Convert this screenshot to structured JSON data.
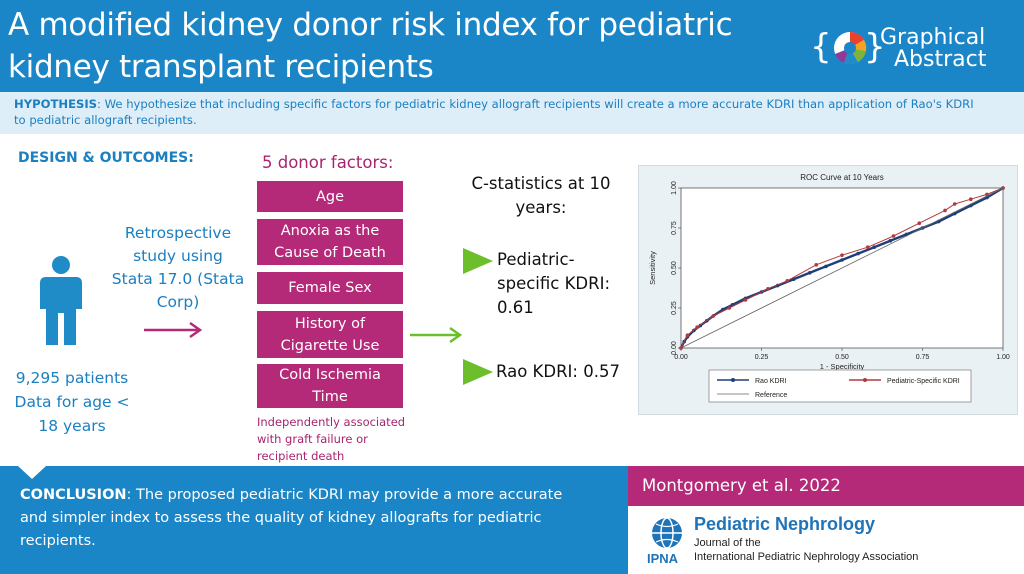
{
  "header": {
    "title_line1": "A modified kidney donor risk index for pediatric",
    "title_line2": "kidney transplant recipients",
    "badge_line1": "Graphical",
    "badge_line2": "Abstract"
  },
  "hypothesis": {
    "label": "HYPOTHESIS",
    "text_line1": ": We hypothesize that including specific factors for pediatric kidney allograft recipients will create a more accurate KDRI than application of Rao's KDRI",
    "text_line2": "to pediatric allograft recipients."
  },
  "design": {
    "label": "DESIGN & OUTCOMES:",
    "retro_lines": [
      "Retrospective",
      "study using",
      "Stata 17.0 (Stata",
      "Corp)"
    ],
    "patients_lines": [
      "9,295 patients",
      "Data for age <",
      "18 years"
    ]
  },
  "factors": {
    "title": "5 donor factors:",
    "items": [
      {
        "lines": [
          "Age"
        ]
      },
      {
        "lines": [
          "Anoxia as the",
          "Cause of Death"
        ]
      },
      {
        "lines": [
          "Female Sex"
        ]
      },
      {
        "lines": [
          "History of",
          "Cigarette Use"
        ]
      },
      {
        "lines": [
          "Cold Ischemia",
          "Time"
        ]
      }
    ],
    "note_lines": [
      "Independently associated",
      "with graft failure or",
      "recipient death"
    ]
  },
  "cstats": {
    "title_lines": [
      "C-statistics at 10",
      "years:"
    ],
    "ped_lines": [
      "Pediatric-",
      "specific KDRI:",
      "0.61"
    ],
    "rao": "Rao KDRI: 0.57"
  },
  "chart_data": {
    "type": "line",
    "title": "ROC Curve at 10 Years",
    "xlabel": "1 - Specificity",
    "ylabel": "Sensitivity",
    "xlim": [
      0,
      1
    ],
    "ylim": [
      0,
      1
    ],
    "x_ticks": [
      "0.00",
      "0.25",
      "0.50",
      "0.75",
      "1.00"
    ],
    "y_ticks": [
      "0.00",
      "0.25",
      "0.50",
      "0.75",
      "1.00"
    ],
    "legend_position": "bottom",
    "series": [
      {
        "name": "Rao KDRI",
        "color": "#1f3f7a",
        "x": [
          0,
          0.01,
          0.02,
          0.04,
          0.06,
          0.08,
          0.1,
          0.13,
          0.16,
          0.2,
          0.25,
          0.3,
          0.35,
          0.4,
          0.45,
          0.5,
          0.55,
          0.6,
          0.65,
          0.7,
          0.75,
          0.8,
          0.85,
          0.9,
          0.95,
          1
        ],
        "y": [
          0,
          0.04,
          0.07,
          0.11,
          0.14,
          0.17,
          0.2,
          0.24,
          0.27,
          0.31,
          0.35,
          0.39,
          0.43,
          0.47,
          0.51,
          0.55,
          0.59,
          0.63,
          0.67,
          0.71,
          0.75,
          0.79,
          0.84,
          0.89,
          0.94,
          1
        ]
      },
      {
        "name": "Pediatric-Specific KDRI",
        "color": "#b03a3a",
        "x": [
          0,
          0.02,
          0.05,
          0.1,
          0.15,
          0.2,
          0.27,
          0.33,
          0.42,
          0.5,
          0.58,
          0.66,
          0.74,
          0.82,
          0.85,
          0.9,
          0.95,
          1
        ],
        "y": [
          0,
          0.08,
          0.13,
          0.2,
          0.25,
          0.3,
          0.37,
          0.42,
          0.52,
          0.58,
          0.63,
          0.7,
          0.78,
          0.86,
          0.9,
          0.93,
          0.96,
          1
        ]
      },
      {
        "name": "Reference",
        "color": "#666666",
        "x": [
          0,
          1
        ],
        "y": [
          0,
          1
        ]
      }
    ]
  },
  "conclusion": {
    "label": "CONCLUSION",
    "lines": [
      ": The proposed pediatric KDRI may provide a more accurate",
      "and simpler index to assess the quality of kidney allografts for pediatric",
      "recipients."
    ]
  },
  "citation": {
    "authors": "Montgomery et al. 2022",
    "journal_name": "Pediatric Nephrology",
    "journal_sub1": "Journal of the",
    "journal_sub2": "International Pediatric Nephrology Association",
    "ipna": "IPNA"
  },
  "colors": {
    "header_blue": "#1a86c7",
    "magenta": "#b42a78",
    "arrow_green": "#6cbf2a"
  }
}
